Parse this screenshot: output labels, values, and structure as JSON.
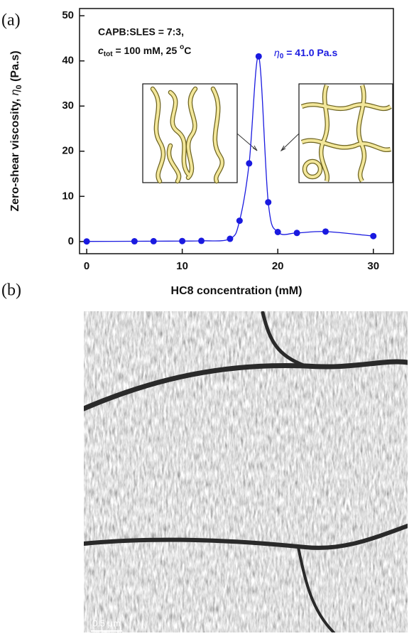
{
  "panel_labels": [
    "(a)",
    "(b)"
  ],
  "chart_data": {
    "type": "line",
    "xlabel": "HC8 concentration (mM)",
    "ylabel": [
      "Zero-shear viscosity, ",
      "η",
      "0",
      " (Pa.s)"
    ],
    "annotation": [
      "CAPB:SLES = 7:3,",
      [
        "c",
        "tot",
        " = 100 mM, 25 ",
        "o",
        "C"
      ]
    ],
    "peak_label": [
      "η",
      "0",
      " = 41.0 Pa.s"
    ],
    "x": [
      0,
      5,
      7,
      10,
      12,
      15,
      16,
      17,
      18,
      19,
      20,
      22,
      25,
      30
    ],
    "series": [
      {
        "color": "#1a1ae0",
        "values": [
          0.02,
          0.05,
          0.07,
          0.1,
          0.15,
          0.6,
          4.6,
          17.3,
          41.0,
          8.7,
          2.1,
          1.9,
          2.2,
          1.2
        ]
      }
    ],
    "xlim": [
      -0.75,
      32.1
    ],
    "ylim": [
      -2.7,
      51.6
    ],
    "xticks": [
      0,
      10,
      20,
      30
    ],
    "yticks": [
      0,
      10,
      20,
      30,
      40,
      50
    ]
  },
  "micrograph": {
    "scale_bar": "0.5 μm"
  }
}
